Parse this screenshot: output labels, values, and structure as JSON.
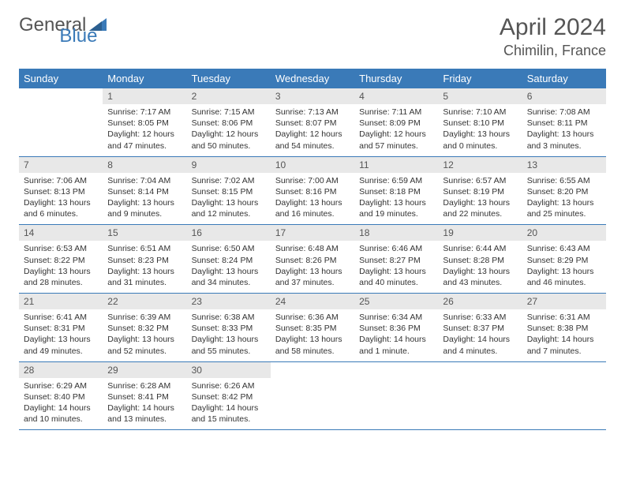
{
  "brand": {
    "part1": "General",
    "part2": "Blue",
    "logo_color": "#3a7ab8"
  },
  "title": "April 2024",
  "location": "Chimilin, France",
  "colors": {
    "header_bg": "#3a7ab8",
    "header_text": "#ffffff",
    "daynum_bg": "#e8e8e8",
    "rule": "#3a7ab8",
    "text": "#333333",
    "muted": "#555555"
  },
  "fonts": {
    "base_family": "Arial",
    "title_size_pt": 22,
    "location_size_pt": 13,
    "header_size_pt": 10,
    "body_size_pt": 8
  },
  "day_headers": [
    "Sunday",
    "Monday",
    "Tuesday",
    "Wednesday",
    "Thursday",
    "Friday",
    "Saturday"
  ],
  "weeks": [
    [
      {
        "empty": true
      },
      {
        "num": "1",
        "sunrise": "Sunrise: 7:17 AM",
        "sunset": "Sunset: 8:05 PM",
        "daylight": "Daylight: 12 hours and 47 minutes."
      },
      {
        "num": "2",
        "sunrise": "Sunrise: 7:15 AM",
        "sunset": "Sunset: 8:06 PM",
        "daylight": "Daylight: 12 hours and 50 minutes."
      },
      {
        "num": "3",
        "sunrise": "Sunrise: 7:13 AM",
        "sunset": "Sunset: 8:07 PM",
        "daylight": "Daylight: 12 hours and 54 minutes."
      },
      {
        "num": "4",
        "sunrise": "Sunrise: 7:11 AM",
        "sunset": "Sunset: 8:09 PM",
        "daylight": "Daylight: 12 hours and 57 minutes."
      },
      {
        "num": "5",
        "sunrise": "Sunrise: 7:10 AM",
        "sunset": "Sunset: 8:10 PM",
        "daylight": "Daylight: 13 hours and 0 minutes."
      },
      {
        "num": "6",
        "sunrise": "Sunrise: 7:08 AM",
        "sunset": "Sunset: 8:11 PM",
        "daylight": "Daylight: 13 hours and 3 minutes."
      }
    ],
    [
      {
        "num": "7",
        "sunrise": "Sunrise: 7:06 AM",
        "sunset": "Sunset: 8:13 PM",
        "daylight": "Daylight: 13 hours and 6 minutes."
      },
      {
        "num": "8",
        "sunrise": "Sunrise: 7:04 AM",
        "sunset": "Sunset: 8:14 PM",
        "daylight": "Daylight: 13 hours and 9 minutes."
      },
      {
        "num": "9",
        "sunrise": "Sunrise: 7:02 AM",
        "sunset": "Sunset: 8:15 PM",
        "daylight": "Daylight: 13 hours and 12 minutes."
      },
      {
        "num": "10",
        "sunrise": "Sunrise: 7:00 AM",
        "sunset": "Sunset: 8:16 PM",
        "daylight": "Daylight: 13 hours and 16 minutes."
      },
      {
        "num": "11",
        "sunrise": "Sunrise: 6:59 AM",
        "sunset": "Sunset: 8:18 PM",
        "daylight": "Daylight: 13 hours and 19 minutes."
      },
      {
        "num": "12",
        "sunrise": "Sunrise: 6:57 AM",
        "sunset": "Sunset: 8:19 PM",
        "daylight": "Daylight: 13 hours and 22 minutes."
      },
      {
        "num": "13",
        "sunrise": "Sunrise: 6:55 AM",
        "sunset": "Sunset: 8:20 PM",
        "daylight": "Daylight: 13 hours and 25 minutes."
      }
    ],
    [
      {
        "num": "14",
        "sunrise": "Sunrise: 6:53 AM",
        "sunset": "Sunset: 8:22 PM",
        "daylight": "Daylight: 13 hours and 28 minutes."
      },
      {
        "num": "15",
        "sunrise": "Sunrise: 6:51 AM",
        "sunset": "Sunset: 8:23 PM",
        "daylight": "Daylight: 13 hours and 31 minutes."
      },
      {
        "num": "16",
        "sunrise": "Sunrise: 6:50 AM",
        "sunset": "Sunset: 8:24 PM",
        "daylight": "Daylight: 13 hours and 34 minutes."
      },
      {
        "num": "17",
        "sunrise": "Sunrise: 6:48 AM",
        "sunset": "Sunset: 8:26 PM",
        "daylight": "Daylight: 13 hours and 37 minutes."
      },
      {
        "num": "18",
        "sunrise": "Sunrise: 6:46 AM",
        "sunset": "Sunset: 8:27 PM",
        "daylight": "Daylight: 13 hours and 40 minutes."
      },
      {
        "num": "19",
        "sunrise": "Sunrise: 6:44 AM",
        "sunset": "Sunset: 8:28 PM",
        "daylight": "Daylight: 13 hours and 43 minutes."
      },
      {
        "num": "20",
        "sunrise": "Sunrise: 6:43 AM",
        "sunset": "Sunset: 8:29 PM",
        "daylight": "Daylight: 13 hours and 46 minutes."
      }
    ],
    [
      {
        "num": "21",
        "sunrise": "Sunrise: 6:41 AM",
        "sunset": "Sunset: 8:31 PM",
        "daylight": "Daylight: 13 hours and 49 minutes."
      },
      {
        "num": "22",
        "sunrise": "Sunrise: 6:39 AM",
        "sunset": "Sunset: 8:32 PM",
        "daylight": "Daylight: 13 hours and 52 minutes."
      },
      {
        "num": "23",
        "sunrise": "Sunrise: 6:38 AM",
        "sunset": "Sunset: 8:33 PM",
        "daylight": "Daylight: 13 hours and 55 minutes."
      },
      {
        "num": "24",
        "sunrise": "Sunrise: 6:36 AM",
        "sunset": "Sunset: 8:35 PM",
        "daylight": "Daylight: 13 hours and 58 minutes."
      },
      {
        "num": "25",
        "sunrise": "Sunrise: 6:34 AM",
        "sunset": "Sunset: 8:36 PM",
        "daylight": "Daylight: 14 hours and 1 minute."
      },
      {
        "num": "26",
        "sunrise": "Sunrise: 6:33 AM",
        "sunset": "Sunset: 8:37 PM",
        "daylight": "Daylight: 14 hours and 4 minutes."
      },
      {
        "num": "27",
        "sunrise": "Sunrise: 6:31 AM",
        "sunset": "Sunset: 8:38 PM",
        "daylight": "Daylight: 14 hours and 7 minutes."
      }
    ],
    [
      {
        "num": "28",
        "sunrise": "Sunrise: 6:29 AM",
        "sunset": "Sunset: 8:40 PM",
        "daylight": "Daylight: 14 hours and 10 minutes."
      },
      {
        "num": "29",
        "sunrise": "Sunrise: 6:28 AM",
        "sunset": "Sunset: 8:41 PM",
        "daylight": "Daylight: 14 hours and 13 minutes."
      },
      {
        "num": "30",
        "sunrise": "Sunrise: 6:26 AM",
        "sunset": "Sunset: 8:42 PM",
        "daylight": "Daylight: 14 hours and 15 minutes."
      },
      {
        "empty": true
      },
      {
        "empty": true
      },
      {
        "empty": true
      },
      {
        "empty": true
      }
    ]
  ]
}
